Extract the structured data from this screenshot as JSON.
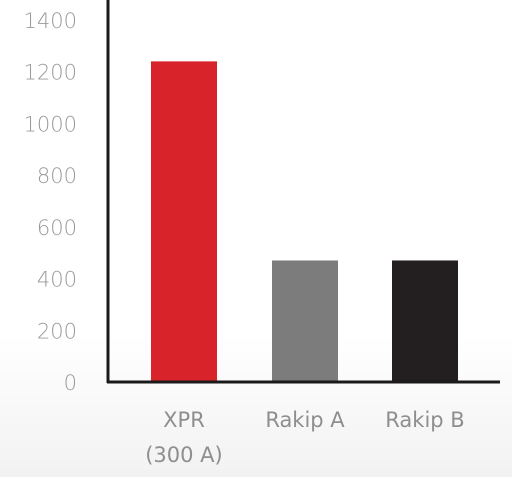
{
  "chart_data": {
    "type": "bar",
    "categories": [
      {
        "lines": [
          "XPR",
          "(300 A)"
        ]
      },
      {
        "lines": [
          "Rakip A"
        ]
      },
      {
        "lines": [
          "Rakip B"
        ]
      }
    ],
    "values": [
      1240,
      470,
      470
    ],
    "colors": [
      "#d8232a",
      "#7b7c7b",
      "#231f20"
    ],
    "yticks": [
      "0",
      "200",
      "400",
      "600",
      "800",
      "1000",
      "1200",
      "1400"
    ],
    "ylim": [
      0,
      1400
    ],
    "grid": false,
    "axis_color": "#1a1a1a"
  }
}
